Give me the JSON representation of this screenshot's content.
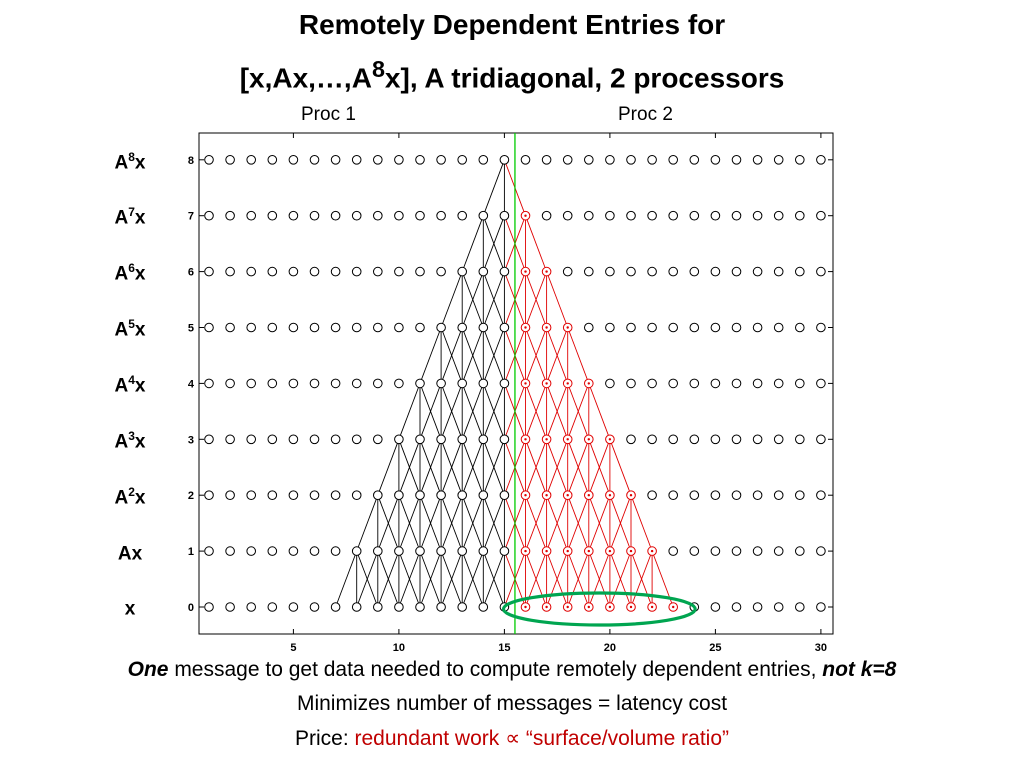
{
  "title": {
    "line1": "Remotely Dependent Entries for",
    "line2_pre": "[x,Ax,…,A",
    "line2_sup": "8",
    "line2_post": "x], A tridiagonal, 2 processors"
  },
  "proc_labels": [
    "Proc 1",
    "Proc 2"
  ],
  "row_labels": [
    {
      "base": "A",
      "sup": "8",
      "tail": "x"
    },
    {
      "base": "A",
      "sup": "7",
      "tail": "x"
    },
    {
      "base": "A",
      "sup": "6",
      "tail": "x"
    },
    {
      "base": "A",
      "sup": "5",
      "tail": "x"
    },
    {
      "base": "A",
      "sup": "4",
      "tail": "x"
    },
    {
      "base": "A",
      "sup": "3",
      "tail": "x"
    },
    {
      "base": "A",
      "sup": "2",
      "tail": "x"
    },
    {
      "base": "Ax",
      "sup": "",
      "tail": ""
    },
    {
      "base": "x",
      "sup": "",
      "tail": ""
    }
  ],
  "axes": {
    "x_range": [
      1,
      30
    ],
    "y_range": [
      0,
      8
    ],
    "x_ticks": [
      5,
      10,
      15,
      20,
      25,
      30
    ],
    "y_ticks": [
      0,
      1,
      2,
      3,
      4,
      5,
      6,
      7,
      8
    ],
    "processor_boundary": 15.5
  },
  "dependency": {
    "local_last_index": 15,
    "top_index": 15,
    "levels": 8
  },
  "colors": {
    "local": "#000000",
    "remote": "#e00000",
    "boundary": "#00cc00",
    "ellipse": "#00a550"
  },
  "caption": {
    "l1_bold1": "One",
    "l1_mid": " message to get data needed to compute remotely dependent entries, ",
    "l1_bold2": "not k=8",
    "l2": "Minimizes number of messages = latency cost",
    "l3_pre": "Price: ",
    "l3_red": "redundant work ∝ “surface/volume ratio”"
  }
}
